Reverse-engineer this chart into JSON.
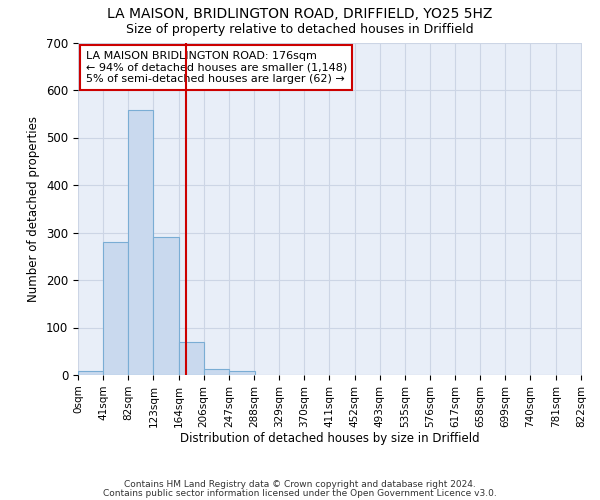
{
  "title1": "LA MAISON, BRIDLINGTON ROAD, DRIFFIELD, YO25 5HZ",
  "title2": "Size of property relative to detached houses in Driffield",
  "xlabel": "Distribution of detached houses by size in Driffield",
  "ylabel": "Number of detached properties",
  "bar_color": "#c9d9ee",
  "bar_edge_color": "#7aadd4",
  "bar_left_edges": [
    0,
    41,
    82,
    123,
    164,
    206,
    247,
    288,
    329,
    370,
    411,
    452,
    493,
    535,
    576,
    617,
    658,
    699,
    740,
    781
  ],
  "bar_heights": [
    8,
    280,
    557,
    290,
    70,
    13,
    8,
    0,
    0,
    0,
    0,
    0,
    0,
    0,
    0,
    0,
    0,
    0,
    0,
    0
  ],
  "bin_width": 41,
  "property_size": 176,
  "vline_color": "#cc0000",
  "annotation_line1": "LA MAISON BRIDLINGTON ROAD: 176sqm",
  "annotation_line2": "← 94% of detached houses are smaller (1,148)",
  "annotation_line3": "5% of semi-detached houses are larger (62) →",
  "annotation_box_color": "#ffffff",
  "annotation_box_edge": "#cc0000",
  "yticks": [
    0,
    100,
    200,
    300,
    400,
    500,
    600,
    700
  ],
  "ylim": [
    0,
    700
  ],
  "xlim": [
    0,
    822
  ],
  "tick_labels": [
    "0sqm",
    "41sqm",
    "82sqm",
    "123sqm",
    "164sqm",
    "206sqm",
    "247sqm",
    "288sqm",
    "329sqm",
    "370sqm",
    "411sqm",
    "452sqm",
    "493sqm",
    "535sqm",
    "576sqm",
    "617sqm",
    "658sqm",
    "699sqm",
    "740sqm",
    "781sqm",
    "822sqm"
  ],
  "grid_color": "#ccd5e5",
  "background_color": "#e8eef8",
  "footer1": "Contains HM Land Registry data © Crown copyright and database right 2024.",
  "footer2": "Contains public sector information licensed under the Open Government Licence v3.0."
}
